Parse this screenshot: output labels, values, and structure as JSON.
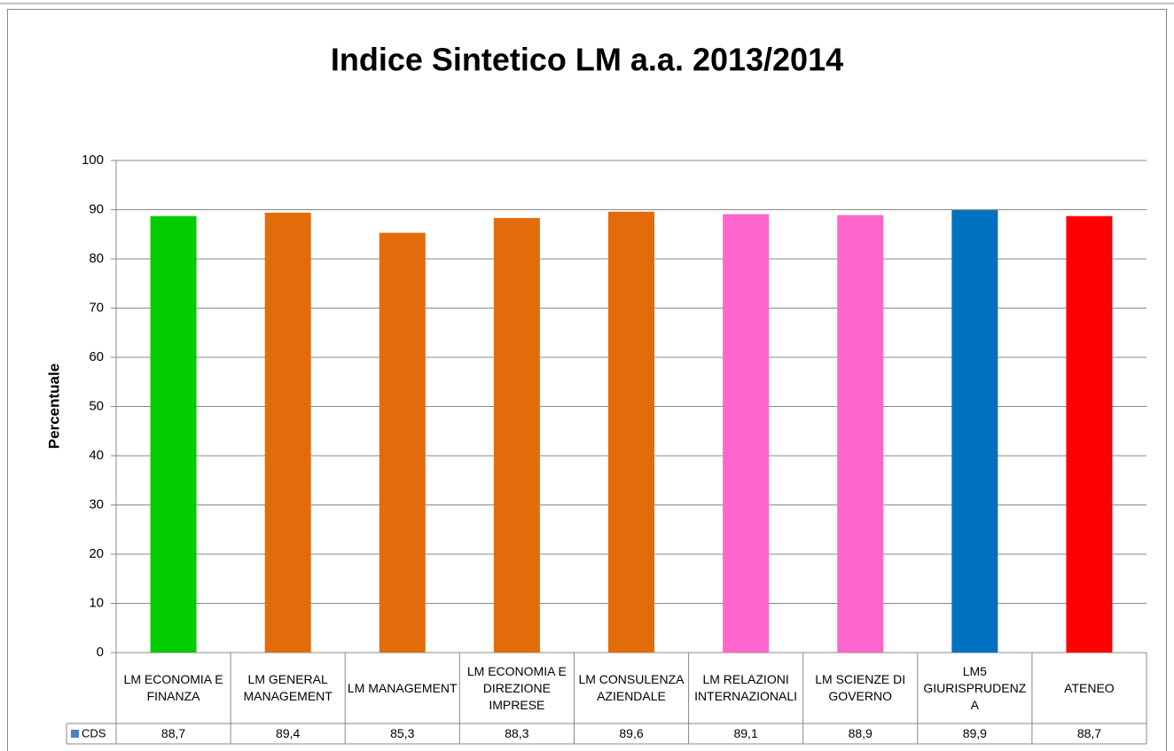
{
  "chart_data": {
    "type": "bar",
    "title": "Indice Sintetico LM a.a. 2013/2014",
    "y_label": "Percentuale",
    "categories": [
      "LM ECONOMIA E FINANZA",
      "LM GENERAL MANAGEMENT",
      "LM MANAGEMENT",
      "LM ECONOMIA E DIREZIONE IMPRESE",
      "LM CONSULENZA AZIENDALE",
      "LM RELAZIONI INTERNAZIONALI",
      "LM SCIENZE DI GOVERNO",
      "LM5 GIURISPRUDENZA",
      "ATENEO"
    ],
    "series": [
      {
        "name": "CDS",
        "color": "#4f81bd",
        "values": [
          88.7,
          89.4,
          85.3,
          88.3,
          89.6,
          89.1,
          88.9,
          89.9,
          88.7
        ],
        "value_labels": [
          "88,7",
          "89,4",
          "85,3",
          "88,3",
          "89,6",
          "89,1",
          "88,9",
          "89,9",
          "88,7"
        ],
        "bar_colors": [
          "#00cc00",
          "#e36c0a",
          "#e36c0a",
          "#e36c0a",
          "#e36c0a",
          "#ff66cc",
          "#ff66cc",
          "#0070c0",
          "#ff0000"
        ]
      }
    ],
    "ylim": [
      0,
      100
    ],
    "yticks": [
      0,
      10,
      20,
      30,
      40,
      50,
      60,
      70,
      80,
      90,
      100
    ],
    "grid": true
  }
}
